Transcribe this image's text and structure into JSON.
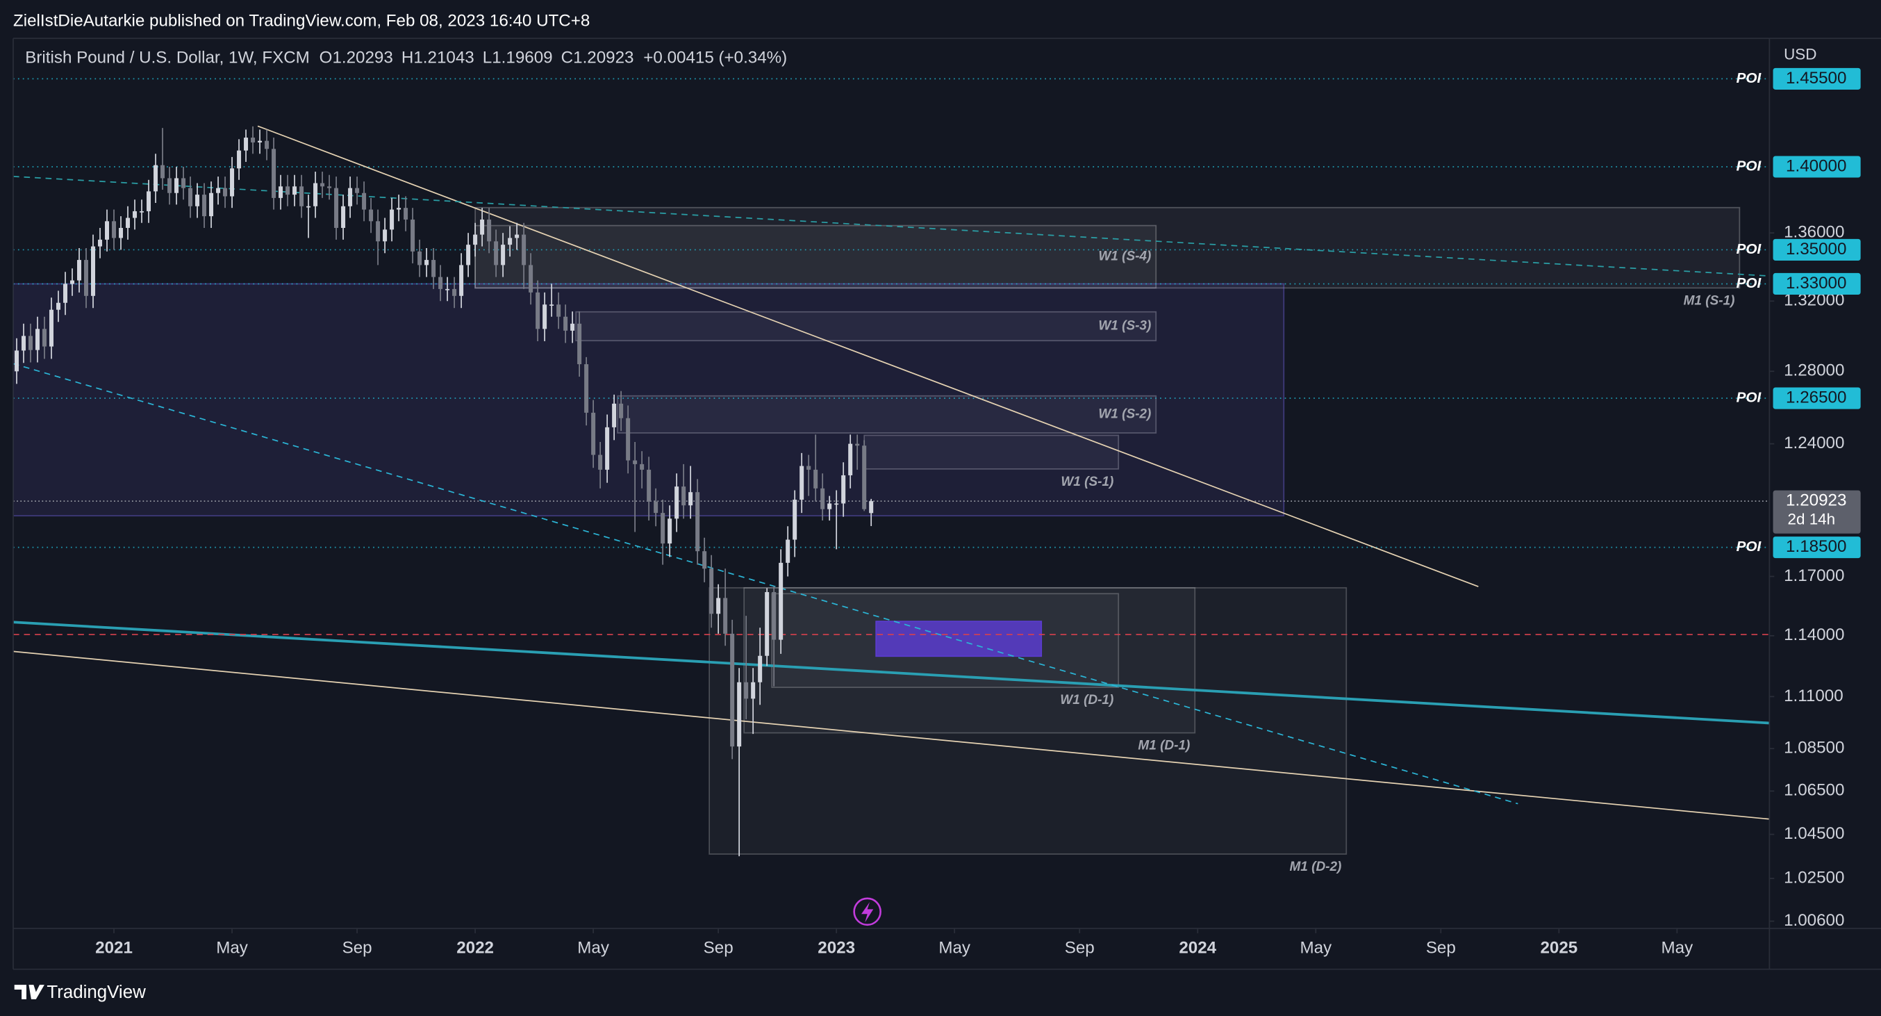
{
  "chart_data": {
    "type": "candlestick",
    "published": "ZielIstDieAutarkie published on TradingView.com, Feb 08, 2023 16:40 UTC+8",
    "title": "British Pound / U.S. Dollar, 1W, FXCM",
    "legend_values": [
      {
        "label": "O",
        "value": "1.20293"
      },
      {
        "label": "H",
        "value": "1.21043"
      },
      {
        "label": "L",
        "value": "1.19609"
      },
      {
        "label": "C",
        "value": "1.20923"
      }
    ],
    "change": "+0.00415 (+0.34%)",
    "y_axis_label": "USD",
    "brand": "TradingView",
    "log_scale": true,
    "up_color": "#d1d4dc",
    "down_color": "#787b86",
    "open": [
      1.28,
      1.2917,
      1.3,
      1.292,
      1.304,
      1.294,
      1.315,
      1.319,
      1.33,
      1.332,
      1.344,
      1.323,
      1.352,
      1.356,
      1.367,
      1.357,
      1.363,
      1.369,
      1.373,
      1.373,
      1.385,
      1.401,
      1.393,
      1.384,
      1.393,
      1.387,
      1.376,
      1.383,
      1.37,
      1.384,
      1.387,
      1.382,
      1.399,
      1.41,
      1.418,
      1.415,
      1.416,
      1.411,
      1.381,
      1.388,
      1.383,
      1.388,
      1.376,
      1.376,
      1.39,
      1.388,
      1.387,
      1.363,
      1.376,
      1.387,
      1.384,
      1.374,
      1.367,
      1.355,
      1.362,
      1.374,
      1.375,
      1.368,
      1.349,
      1.341,
      1.344,
      1.334,
      1.327,
      1.327,
      1.323,
      1.341,
      1.353,
      1.359,
      1.368,
      1.355,
      1.341,
      1.353,
      1.357,
      1.359,
      1.341,
      1.325,
      1.304,
      1.318,
      1.318,
      1.311,
      1.303,
      1.307,
      1.284,
      1.257,
      1.234,
      1.226,
      1.249,
      1.262,
      1.254,
      1.231,
      1.229,
      1.226,
      1.209,
      1.203,
      1.187,
      1.2,
      1.217,
      1.207,
      1.214,
      1.183,
      1.174,
      1.151,
      1.159,
      1.141,
      1.086,
      1.117,
      1.109,
      1.117,
      1.13,
      1.162,
      1.138,
      1.177,
      1.189,
      1.21,
      1.228,
      1.226,
      1.216,
      1.205,
      1.208,
      1.208,
      1.223,
      1.24,
      1.239,
      1.20293
    ],
    "high": [
      1.2987,
      1.307,
      1.307,
      1.311,
      1.311,
      1.322,
      1.326,
      1.337,
      1.339,
      1.351,
      1.351,
      1.359,
      1.363,
      1.374,
      1.374,
      1.37,
      1.376,
      1.38,
      1.38,
      1.392,
      1.408,
      1.424,
      1.4,
      1.4,
      1.4,
      1.394,
      1.39,
      1.39,
      1.391,
      1.394,
      1.394,
      1.406,
      1.417,
      1.423,
      1.425,
      1.423,
      1.423,
      1.418,
      1.395,
      1.395,
      1.395,
      1.395,
      1.383,
      1.397,
      1.397,
      1.395,
      1.394,
      1.383,
      1.394,
      1.394,
      1.391,
      1.381,
      1.374,
      1.369,
      1.381,
      1.383,
      1.382,
      1.375,
      1.356,
      1.351,
      1.351,
      1.341,
      1.334,
      1.334,
      1.348,
      1.36,
      1.366,
      1.375,
      1.375,
      1.362,
      1.36,
      1.364,
      1.366,
      1.366,
      1.348,
      1.332,
      1.325,
      1.33,
      1.325,
      1.318,
      1.314,
      1.314,
      1.288,
      1.264,
      1.241,
      1.256,
      1.267,
      1.269,
      1.261,
      1.241,
      1.236,
      1.233,
      1.216,
      1.21,
      1.207,
      1.224,
      1.229,
      1.228,
      1.221,
      1.19,
      1.181,
      1.166,
      1.174,
      1.148,
      1.124,
      1.15,
      1.124,
      1.144,
      1.164,
      1.165,
      1.184,
      1.196,
      1.215,
      1.235,
      1.234,
      1.245,
      1.224,
      1.212,
      1.215,
      1.23,
      1.245,
      1.245,
      1.242,
      1.21043
    ],
    "low": [
      1.273,
      1.2847,
      1.285,
      1.285,
      1.287,
      1.287,
      1.308,
      1.312,
      1.323,
      1.325,
      1.316,
      1.316,
      1.345,
      1.349,
      1.35,
      1.35,
      1.356,
      1.362,
      1.366,
      1.366,
      1.378,
      1.386,
      1.377,
      1.377,
      1.38,
      1.369,
      1.369,
      1.363,
      1.363,
      1.377,
      1.375,
      1.375,
      1.392,
      1.403,
      1.408,
      1.408,
      1.404,
      1.374,
      1.374,
      1.376,
      1.376,
      1.369,
      1.357,
      1.369,
      1.381,
      1.38,
      1.356,
      1.356,
      1.369,
      1.377,
      1.367,
      1.36,
      1.341,
      1.348,
      1.355,
      1.367,
      1.361,
      1.342,
      1.334,
      1.334,
      1.327,
      1.32,
      1.32,
      1.316,
      1.316,
      1.334,
      1.346,
      1.352,
      1.348,
      1.334,
      1.334,
      1.346,
      1.35,
      1.327,
      1.318,
      1.297,
      1.297,
      1.311,
      1.304,
      1.296,
      1.296,
      1.277,
      1.25,
      1.227,
      1.216,
      1.219,
      1.242,
      1.247,
      1.224,
      1.193,
      1.216,
      1.199,
      1.196,
      1.176,
      1.18,
      1.193,
      1.2,
      1.2,
      1.176,
      1.167,
      1.144,
      1.141,
      1.135,
      1.08,
      1.035,
      1.099,
      1.092,
      1.106,
      1.125,
      1.115,
      1.131,
      1.17,
      1.18,
      1.203,
      1.212,
      1.209,
      1.199,
      1.199,
      1.184,
      1.201,
      1.216,
      1.226,
      1.204,
      1.19609
    ],
    "close": [
      1.2917,
      1.3,
      1.292,
      1.304,
      1.294,
      1.315,
      1.319,
      1.33,
      1.332,
      1.344,
      1.323,
      1.352,
      1.356,
      1.367,
      1.357,
      1.363,
      1.369,
      1.373,
      1.373,
      1.385,
      1.401,
      1.393,
      1.384,
      1.393,
      1.387,
      1.376,
      1.383,
      1.37,
      1.384,
      1.387,
      1.382,
      1.399,
      1.41,
      1.418,
      1.415,
      1.416,
      1.411,
      1.381,
      1.388,
      1.383,
      1.388,
      1.376,
      1.376,
      1.39,
      1.388,
      1.387,
      1.363,
      1.376,
      1.387,
      1.384,
      1.374,
      1.367,
      1.355,
      1.362,
      1.374,
      1.375,
      1.368,
      1.349,
      1.341,
      1.344,
      1.334,
      1.327,
      1.327,
      1.323,
      1.341,
      1.353,
      1.359,
      1.368,
      1.355,
      1.341,
      1.353,
      1.357,
      1.359,
      1.341,
      1.325,
      1.304,
      1.318,
      1.318,
      1.311,
      1.303,
      1.307,
      1.284,
      1.257,
      1.234,
      1.226,
      1.249,
      1.262,
      1.254,
      1.231,
      1.229,
      1.226,
      1.209,
      1.203,
      1.187,
      1.2,
      1.217,
      1.207,
      1.214,
      1.183,
      1.174,
      1.151,
      1.159,
      1.141,
      1.086,
      1.117,
      1.109,
      1.117,
      1.13,
      1.162,
      1.138,
      1.177,
      1.189,
      1.21,
      1.228,
      1.226,
      1.216,
      1.205,
      1.208,
      1.208,
      1.223,
      1.24,
      1.239,
      1.205,
      1.20923
    ],
    "xlim": [
      -0.5,
      252.3
    ],
    "xticks": [
      {
        "value": 14,
        "label": "2021"
      },
      {
        "value": 31,
        "label": "May"
      },
      {
        "value": 49,
        "label": "Sep"
      },
      {
        "value": 66,
        "label": "2022"
      },
      {
        "value": 83,
        "label": "May"
      },
      {
        "value": 101,
        "label": "Sep"
      },
      {
        "value": 118,
        "label": "2023"
      },
      {
        "value": 135,
        "label": "May"
      },
      {
        "value": 153,
        "label": "Sep"
      },
      {
        "value": 170,
        "label": "2024"
      },
      {
        "value": 187,
        "label": "May"
      },
      {
        "value": 205,
        "label": "Sep"
      },
      {
        "value": 222,
        "label": "2025"
      },
      {
        "value": 239,
        "label": "May"
      }
    ],
    "ylim": [
      1.0028,
      1.481
    ],
    "yticks": [
      {
        "value": 1.36,
        "label": "1.36000"
      },
      {
        "value": 1.32,
        "label": "1.32000"
      },
      {
        "value": 1.28,
        "label": "1.28000"
      },
      {
        "value": 1.24,
        "label": "1.24000"
      },
      {
        "value": 1.17,
        "label": "1.17000"
      },
      {
        "value": 1.14,
        "label": "1.14000"
      },
      {
        "value": 1.11,
        "label": "1.11000"
      },
      {
        "value": 1.085,
        "label": "1.08500"
      },
      {
        "value": 1.065,
        "label": "1.06500"
      },
      {
        "value": 1.045,
        "label": "1.04500"
      },
      {
        "value": 1.025,
        "label": "1.02500"
      },
      {
        "value": 1.006,
        "label": "1.00600"
      }
    ],
    "level_color": "#22bcd6",
    "levels": [
      {
        "value": 1.455,
        "label": "1.45500",
        "tag": "POI"
      },
      {
        "value": 1.4,
        "label": "1.40000",
        "tag": "POI"
      },
      {
        "value": 1.35,
        "label": "1.35000",
        "tag": "POI"
      },
      {
        "value": 1.33,
        "label": "1.33000",
        "tag": "POI"
      },
      {
        "value": 1.265,
        "label": "1.26500",
        "tag": "POI"
      },
      {
        "value": 1.185,
        "label": "1.18500",
        "tag": "POI"
      }
    ],
    "last_price": {
      "value": 1.20923,
      "label": "1.20923",
      "countdown": "2d 14h",
      "color": "#5d606b"
    },
    "zones": [
      {
        "top": 1.3752,
        "bottom": 1.3276,
        "start": 66,
        "end": 248,
        "label": "M1 (S-1)",
        "color": "#ffffff",
        "opacity": 0.05
      },
      {
        "top": 1.3644,
        "bottom": 1.3276,
        "start": 66,
        "end": 164,
        "label": "W1 (S-4)",
        "color": "#ffffff",
        "opacity": 0.05
      },
      {
        "top": 1.3138,
        "bottom": 1.2973,
        "start": 80.5,
        "end": 164,
        "label": "W1 (S-3)",
        "color": "#ffffff",
        "opacity": 0.05
      },
      {
        "top": 1.2663,
        "bottom": 1.2459,
        "start": 86.5,
        "end": 164,
        "label": "W1 (S-2)",
        "color": "#ffffff",
        "opacity": 0.05
      },
      {
        "top": 1.2446,
        "bottom": 1.2264,
        "start": 122,
        "end": 158.6,
        "label": "W1 (S-1)",
        "color": "#ffffff",
        "opacity": 0.05
      },
      {
        "top": 1.33,
        "bottom": 1.2015,
        "start": -0.5,
        "end": 182.4,
        "color": "#7b6cf6",
        "opacity": 0.1
      },
      {
        "top": 1.1642,
        "bottom": 1.036,
        "start": 99.7,
        "end": 191.4,
        "label": "M1 (D-2)",
        "color": "#ffffff",
        "opacity": 0.04
      },
      {
        "top": 1.1642,
        "bottom": 1.0925,
        "start": 104.7,
        "end": 169.6,
        "label": "M1 (D-1)",
        "color": "#ffffff",
        "opacity": 0.04
      },
      {
        "top": 1.1612,
        "bottom": 1.1145,
        "start": 108.7,
        "end": 158.6,
        "label": "W1 (D-1)",
        "color": "#ffffff",
        "opacity": 0.04
      },
      {
        "top": 1.1472,
        "bottom": 1.1298,
        "start": 123.7,
        "end": 147.5,
        "color": "#5b3ccf",
        "opacity": 0.85
      }
    ],
    "lines": [
      {
        "start": [
          34.7,
          1.4252
        ],
        "end": [
          210.4,
          1.1648
        ],
        "color": "#e6d3b3",
        "width": 1,
        "dash": false
      },
      {
        "start": [
          -0.5,
          1.1322
        ],
        "end": [
          252.3,
          1.052
        ],
        "color": "#e6d3b3",
        "width": 1,
        "dash": false
      },
      {
        "start": [
          -0.5,
          1.1468
        ],
        "end": [
          252.3,
          1.0972
        ],
        "color": "#2a9fb3",
        "width": 2.2,
        "dash": false
      },
      {
        "start": [
          -0.5,
          1.2843
        ],
        "end": [
          216.1,
          1.0591
        ],
        "color": "#2bb5d6",
        "width": 1,
        "dash": true
      },
      {
        "start": [
          -0.5,
          1.3941
        ],
        "end": [
          252.3,
          1.3346
        ],
        "color": "#2a9fa6",
        "width": 1,
        "dash": true
      },
      {
        "start": [
          -0.5,
          1.1406
        ],
        "end": [
          252.3,
          1.1406
        ],
        "color": "#d8414d",
        "width": 1,
        "dash": true
      }
    ]
  }
}
